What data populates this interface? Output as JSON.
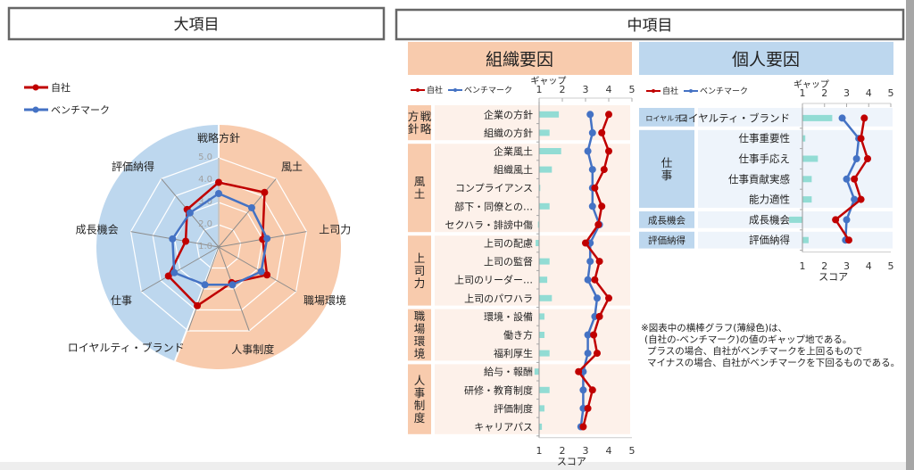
{
  "headers": {
    "major": "大項目",
    "middle": "中項目",
    "org": "組織要因",
    "personal": "個人要因"
  },
  "colors": {
    "own": "#c00000",
    "benchmark": "#4472c4",
    "gap": "#92dcd4",
    "org": "#f8cbad",
    "personal": "#bdd7ee",
    "org_light": "#fdf1ea",
    "personal_light": "#eef4fb"
  },
  "legend": {
    "own": "自社",
    "benchmark": "ベンチマーク"
  },
  "axis": {
    "gap": "ギャップ",
    "score": "スコア"
  },
  "note": {
    "lines": [
      "※図表中の横棒グラフ(薄緑色)は、",
      "(自社の-ベンチマーク)の値のギャップ地である。",
      "プラスの場合、自社がベンチマークを上回るもので",
      "マイナスの場合、自社がベンチマークを下回るものである。"
    ]
  },
  "chart_data": [
    {
      "type": "radar",
      "categories": [
        "戦略方針",
        "風土",
        "上司力",
        "職場環境",
        "人事制度",
        "ロイヤルティ・ブランド",
        "仕事",
        "成長機会",
        "評価納得"
      ],
      "series": [
        {
          "name": "自社",
          "values": [
            3.9,
            4.2,
            3.0,
            3.5,
            2.7,
            3.8,
            3.6,
            2.5,
            3.2
          ]
        },
        {
          "name": "ベンチマーク",
          "values": [
            3.4,
            3.3,
            3.2,
            3.2,
            2.8,
            2.8,
            3.3,
            3.1,
            3.0
          ]
        }
      ],
      "ticks": [
        "1.0",
        "2.0",
        "3.0",
        "4.0",
        "5.0"
      ],
      "range": [
        1,
        5
      ],
      "background_sectors": [
        {
          "group": "組織要因",
          "color": "#f8cbad"
        },
        {
          "group": "個人要因",
          "color": "#bdd7ee"
        }
      ],
      "legend_position": "top-left"
    },
    {
      "type": "line+bar",
      "title": "組織要因",
      "xlim": [
        1,
        5
      ],
      "ticks": [
        "1",
        "2",
        "3",
        "4",
        "5"
      ],
      "groups": [
        {
          "label": "戦略方針",
          "columns": [
            "戦略",
            "方針"
          ],
          "items": [
            {
              "label": "企業の方針",
              "own": 4.0,
              "benchmark": 3.2,
              "gap": 0.85
            },
            {
              "label": "組織の方針",
              "own": 3.7,
              "benchmark": 3.3,
              "gap": 0.45
            }
          ]
        },
        {
          "label": "風土",
          "columns": [
            "風土"
          ],
          "items": [
            {
              "label": "企業風土",
              "own": 4.0,
              "benchmark": 3.1,
              "gap": 0.95
            },
            {
              "label": "組織風土",
              "own": 3.8,
              "benchmark": 3.3,
              "gap": 0.55
            },
            {
              "label": "コンプライアンス",
              "own": 3.4,
              "benchmark": 3.3,
              "gap": 0.05
            },
            {
              "label": "部下・同僚との…",
              "own": 3.7,
              "benchmark": 3.3,
              "gap": 0.45
            },
            {
              "label": "セクハラ・誹謗中傷",
              "own": 3.55,
              "benchmark": 3.6,
              "gap": -0.05
            }
          ]
        },
        {
          "label": "上司力",
          "columns": [
            "上司力"
          ],
          "items": [
            {
              "label": "上司の配慮",
              "own": 3.0,
              "benchmark": 3.2,
              "gap": -0.15
            },
            {
              "label": "上司の監督",
              "own": 3.6,
              "benchmark": 3.2,
              "gap": 0.45
            },
            {
              "label": "上司のリーダー…",
              "own": 3.4,
              "benchmark": 3.1,
              "gap": 0.35
            },
            {
              "label": "上司のパワハラ",
              "own": 4.0,
              "benchmark": 3.5,
              "gap": 0.55
            }
          ]
        },
        {
          "label": "職場環境",
          "columns": [
            "職場環境"
          ],
          "items": [
            {
              "label": "環境・設備",
              "own": 3.6,
              "benchmark": 3.4,
              "gap": 0.23
            },
            {
              "label": "働き方",
              "own": 3.35,
              "benchmark": 3.1,
              "gap": 0.23
            },
            {
              "label": "福利厚生",
              "own": 3.5,
              "benchmark": 3.1,
              "gap": 0.45
            }
          ]
        },
        {
          "label": "人事制度",
          "columns": [
            "人事制度"
          ],
          "items": [
            {
              "label": "給与・報酬",
              "own": 2.7,
              "benchmark": 2.9,
              "gap": -0.2
            },
            {
              "label": "研修・教育制度",
              "own": 3.3,
              "benchmark": 2.9,
              "gap": 0.45
            },
            {
              "label": "評価制度",
              "own": 3.1,
              "benchmark": 2.9,
              "gap": 0.23
            },
            {
              "label": "キャリアパス",
              "own": 2.9,
              "benchmark": 2.8,
              "gap": 0.12
            }
          ]
        }
      ]
    },
    {
      "type": "line+bar",
      "title": "個人要因",
      "xlim": [
        1,
        5
      ],
      "ticks": [
        "1",
        "2",
        "3",
        "4",
        "5"
      ],
      "groups": [
        {
          "label": "ロイヤルティ",
          "columns": null,
          "items": [
            {
              "label": "ロイヤルティ・ブランド",
              "own": 3.8,
              "benchmark": 2.8,
              "gap": 1.35
            }
          ]
        },
        {
          "label": "仕事",
          "columns": [
            "仕事"
          ],
          "items": [
            {
              "label": "仕事重要性",
              "own": 3.65,
              "benchmark": 3.55,
              "gap": 0.13
            },
            {
              "label": "仕事手応え",
              "own": 3.95,
              "benchmark": 3.45,
              "gap": 0.7
            },
            {
              "label": "仕事貢献実感",
              "own": 3.35,
              "benchmark": 3.0,
              "gap": 0.42
            },
            {
              "label": "能力適性",
              "own": 3.65,
              "benchmark": 3.35,
              "gap": 0.42
            }
          ]
        },
        {
          "label": "成長機会",
          "columns": null,
          "items": [
            {
              "label": "成長機会",
              "own": 2.5,
              "benchmark": 3.0,
              "gap": -0.6
            }
          ]
        },
        {
          "label": "評価納得",
          "columns": null,
          "items": [
            {
              "label": "評価納得",
              "own": 3.1,
              "benchmark": 2.95,
              "gap": 0.28
            }
          ]
        }
      ]
    }
  ]
}
